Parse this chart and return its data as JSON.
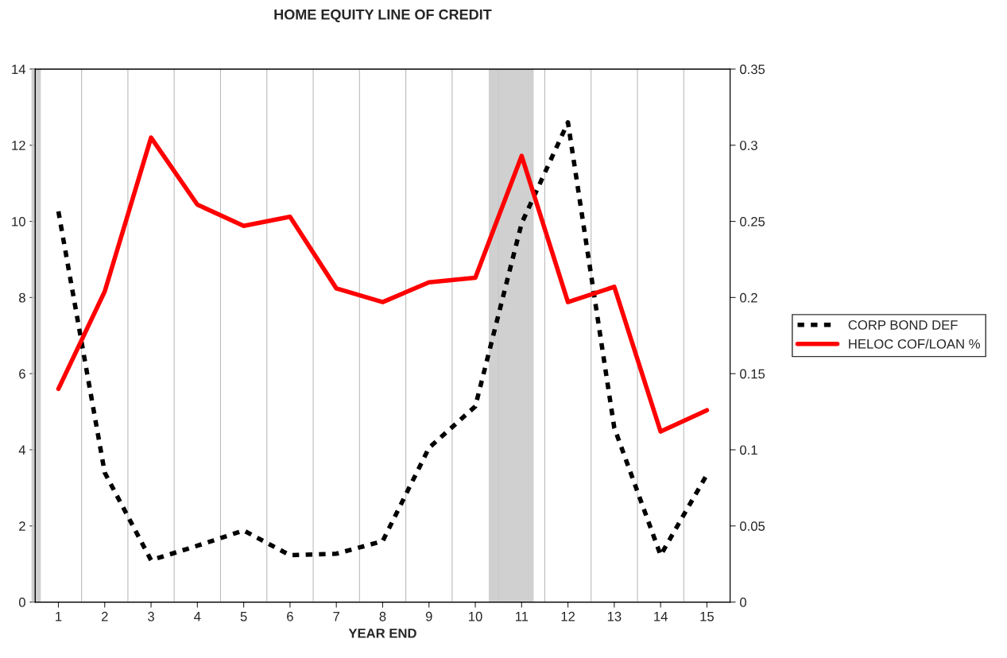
{
  "chart_data": {
    "type": "line",
    "title": "HOME EQUITY LINE OF CREDIT",
    "xlabel": "YEAR END",
    "x": [
      1,
      2,
      3,
      4,
      5,
      6,
      7,
      8,
      9,
      10,
      11,
      12,
      13,
      14,
      15
    ],
    "xlim": [
      0.5,
      15.5
    ],
    "xticks": [
      1,
      2,
      3,
      4,
      5,
      6,
      7,
      8,
      9,
      10,
      11,
      12,
      13,
      14,
      15
    ],
    "ylim": [
      0,
      14
    ],
    "yticks": [
      0,
      2,
      4,
      6,
      8,
      10,
      12,
      14
    ],
    "y2lim": [
      0,
      0.35
    ],
    "y2ticks": [
      0,
      0.05,
      0.1,
      0.15,
      0.2,
      0.25,
      0.3,
      0.35
    ],
    "grid": "x",
    "legend": "right",
    "series": [
      {
        "name": "CORP BOND DEF",
        "color": "#000000",
        "line_style": "dashed",
        "values": [
          10.26,
          3.4,
          1.1,
          1.48,
          1.88,
          1.23,
          1.27,
          1.6,
          4.05,
          5.14,
          9.95,
          12.6,
          4.58,
          1.23,
          3.35
        ]
      },
      {
        "name": "HELOC COF/LOAN %",
        "color": "#ff0000",
        "line_style": "solid",
        "axis": "y2",
        "values": [
          0.14,
          0.204,
          0.305,
          0.261,
          0.247,
          0.253,
          0.206,
          0.197,
          0.21,
          0.213,
          0.293,
          0.197,
          0.207,
          0.112,
          0.126
        ]
      }
    ],
    "bands": [
      {
        "axis": "x",
        "from": 0.42,
        "to": 0.62,
        "color": "#c8c8c8"
      },
      {
        "axis": "x",
        "from": 10.29,
        "to": 11.26,
        "color": "#c8c8c8"
      }
    ]
  }
}
